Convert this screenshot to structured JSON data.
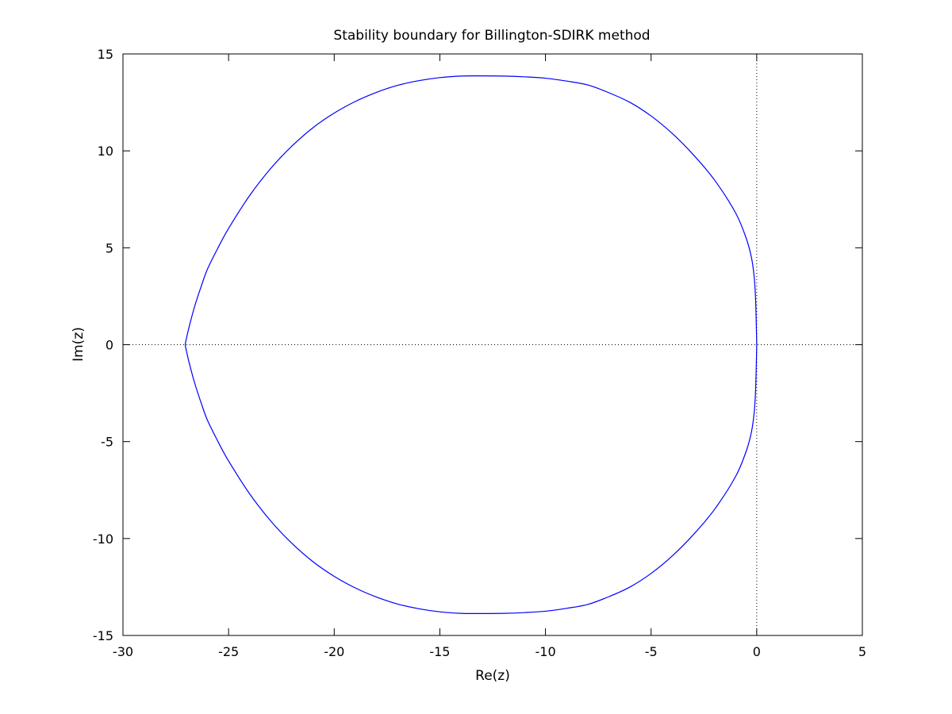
{
  "chart_data": {
    "type": "line",
    "title": "Stability boundary for Billington-SDIRK method",
    "xlabel": "Re(z)",
    "ylabel": "Im(z)",
    "xlim": [
      -30,
      5
    ],
    "ylim": [
      -15,
      15
    ],
    "xticks": [
      -30,
      -25,
      -20,
      -15,
      -10,
      -5,
      0,
      5
    ],
    "yticks": [
      -15,
      -10,
      -5,
      0,
      5,
      10,
      15
    ],
    "xtick_labels": [
      "-30",
      "-25",
      "-20",
      "-15",
      "-10",
      "-5",
      "0",
      "5"
    ],
    "ytick_labels": [
      "-15",
      "-10",
      "-5",
      "0",
      "5",
      "10",
      "15"
    ],
    "grid": false,
    "reference_lines": [
      {
        "orientation": "horizontal",
        "value": 0,
        "style": "dotted"
      },
      {
        "orientation": "vertical",
        "value": 0,
        "style": "dotted"
      }
    ],
    "series": [
      {
        "color": "#0000ff",
        "x": [
          0.0,
          -0.03,
          -0.06,
          -0.12,
          -0.25,
          -0.5,
          -1.0,
          -2.0,
          -3.0,
          -4.0,
          -5.0,
          -6.0,
          -7.0,
          -8.0,
          -9.0,
          -10.0,
          -11.0,
          -12.0,
          -13.2,
          -14.0,
          -15.0,
          -16.0,
          -17.0,
          -18.0,
          -19.0,
          -20.0,
          -21.0,
          -22.0,
          -23.0,
          -24.0,
          -25.0,
          -25.5,
          -26.0,
          -26.3,
          -26.6,
          -26.85,
          -27.0,
          -27.05,
          -27.0,
          -26.85,
          -26.6,
          -26.3,
          -26.0,
          -25.5,
          -25.0,
          -24.0,
          -23.0,
          -22.0,
          -21.0,
          -20.0,
          -19.0,
          -18.0,
          -17.0,
          -16.0,
          -15.0,
          -14.0,
          -13.2,
          -12.0,
          -11.0,
          -10.0,
          -9.0,
          -8.0,
          -7.0,
          -6.0,
          -5.0,
          -4.0,
          -3.0,
          -2.0,
          -1.0,
          -0.5,
          -0.25,
          -0.12,
          -0.06,
          -0.03,
          0.0
        ],
        "y": [
          0.0,
          1.5,
          2.5,
          3.5,
          4.5,
          5.5,
          6.8,
          8.5,
          9.8,
          10.9,
          11.8,
          12.5,
          13.0,
          13.4,
          13.6,
          13.75,
          13.82,
          13.86,
          13.87,
          13.86,
          13.78,
          13.62,
          13.38,
          13.02,
          12.55,
          11.95,
          11.2,
          10.25,
          9.1,
          7.7,
          6.0,
          5.0,
          3.9,
          3.0,
          2.0,
          1.0,
          0.3,
          0.0,
          -0.3,
          -1.0,
          -2.0,
          -3.0,
          -3.9,
          -5.0,
          -6.0,
          -7.7,
          -9.1,
          -10.25,
          -11.2,
          -11.95,
          -12.55,
          -13.02,
          -13.38,
          -13.62,
          -13.78,
          -13.86,
          -13.87,
          -13.86,
          -13.82,
          -13.75,
          -13.6,
          -13.4,
          -13.0,
          -12.5,
          -11.8,
          -10.9,
          -9.8,
          -8.5,
          -6.8,
          -5.5,
          -4.5,
          -3.5,
          -2.5,
          -1.5,
          0.0
        ]
      }
    ]
  }
}
